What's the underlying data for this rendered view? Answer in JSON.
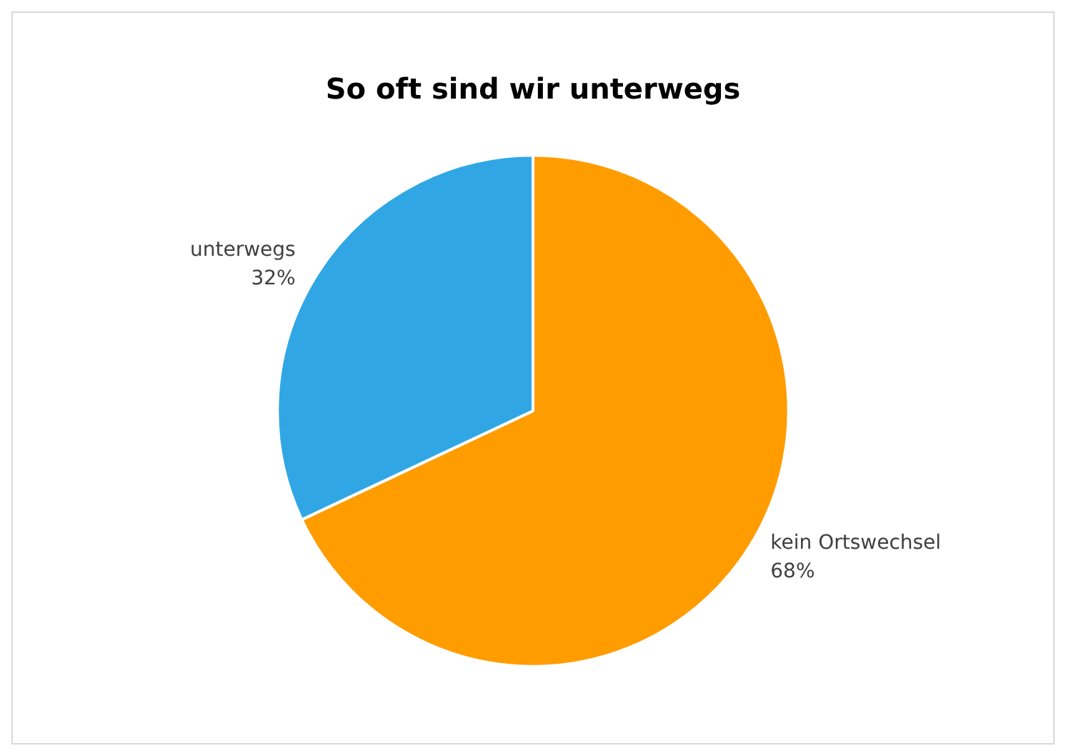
{
  "chart_data": {
    "type": "pie",
    "title": "So oft sind wir unterwegs",
    "categories": [
      "kein Ortswechsel",
      "unterwegs"
    ],
    "values": [
      68,
      32
    ],
    "colors": [
      "#ff9c00",
      "#30a7e4"
    ],
    "value_labels": [
      "68%",
      "32%"
    ],
    "legend": false
  }
}
